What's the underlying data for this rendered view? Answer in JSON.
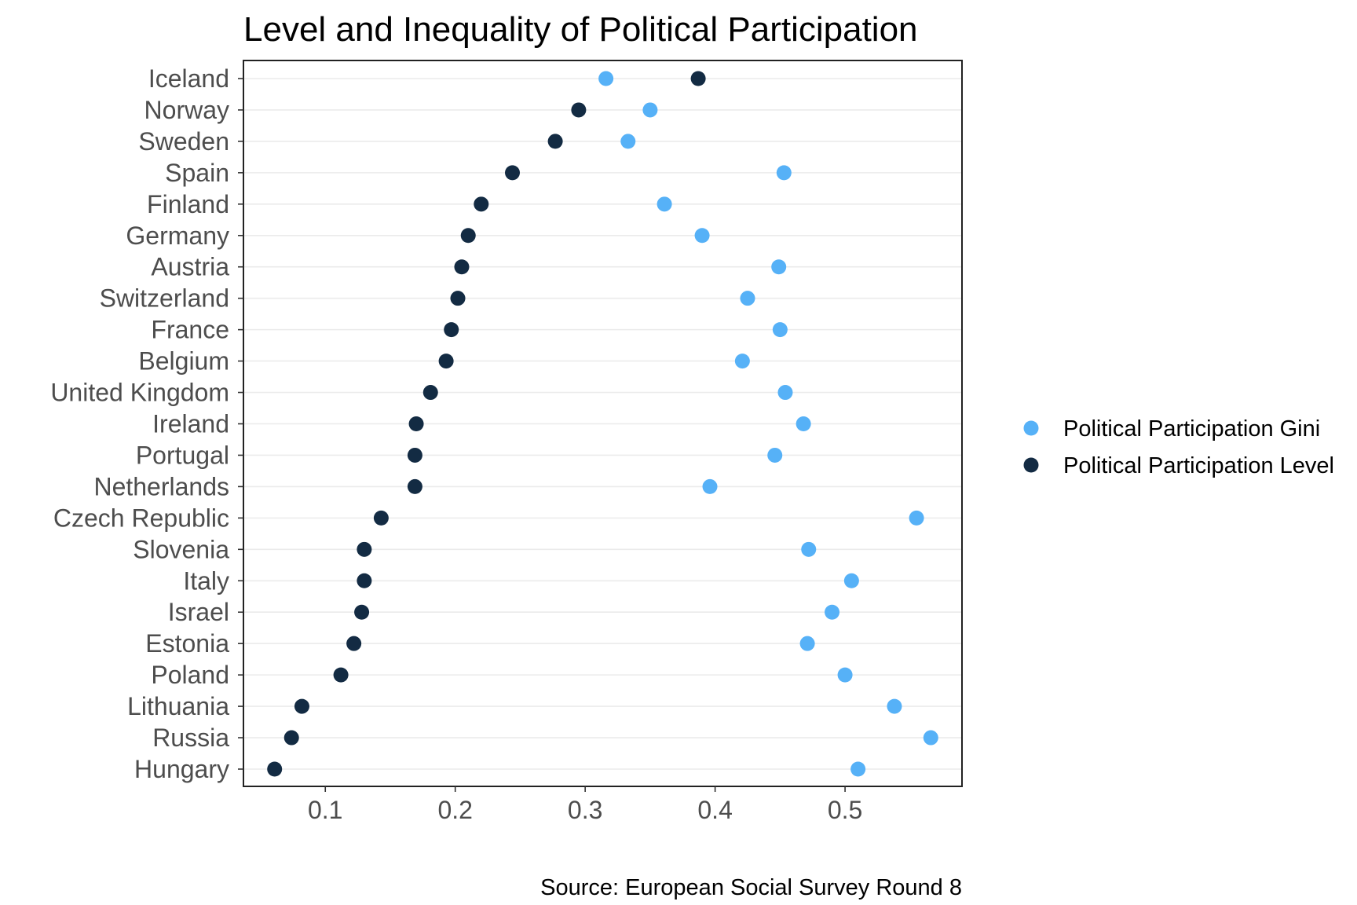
{
  "chart_data": {
    "type": "scatter",
    "title": "Level and Inequality of Political Participation",
    "caption": "Source: European Social Survey Round 8",
    "xlabel": "",
    "ylabel": "",
    "xlim": [
      0.037,
      0.59
    ],
    "x_ticks": [
      "0.1",
      "0.2",
      "0.3",
      "0.4",
      "0.5"
    ],
    "grid": "horizontal major",
    "legend_position": "right",
    "categories": [
      "Iceland",
      "Norway",
      "Sweden",
      "Spain",
      "Finland",
      "Germany",
      "Austria",
      "Switzerland",
      "France",
      "Belgium",
      "United Kingdom",
      "Ireland",
      "Portugal",
      "Netherlands",
      "Czech Republic",
      "Slovenia",
      "Italy",
      "Israel",
      "Estonia",
      "Poland",
      "Lithuania",
      "Russia",
      "Hungary"
    ],
    "series": [
      {
        "name": "Political Participation Gini",
        "color": "#56b1f7",
        "values": [
          0.316,
          0.35,
          0.333,
          0.453,
          0.361,
          0.39,
          0.449,
          0.425,
          0.45,
          0.421,
          0.454,
          0.468,
          0.446,
          0.396,
          0.555,
          0.472,
          0.505,
          0.49,
          0.471,
          0.5,
          0.538,
          0.566,
          0.51
        ]
      },
      {
        "name": "Political Participation Level",
        "color": "#132b43",
        "values": [
          0.387,
          0.295,
          0.277,
          0.244,
          0.22,
          0.21,
          0.205,
          0.202,
          0.197,
          0.193,
          0.181,
          0.17,
          0.169,
          0.169,
          0.143,
          0.13,
          0.13,
          0.128,
          0.122,
          0.112,
          0.082,
          0.074,
          0.061
        ]
      }
    ]
  }
}
